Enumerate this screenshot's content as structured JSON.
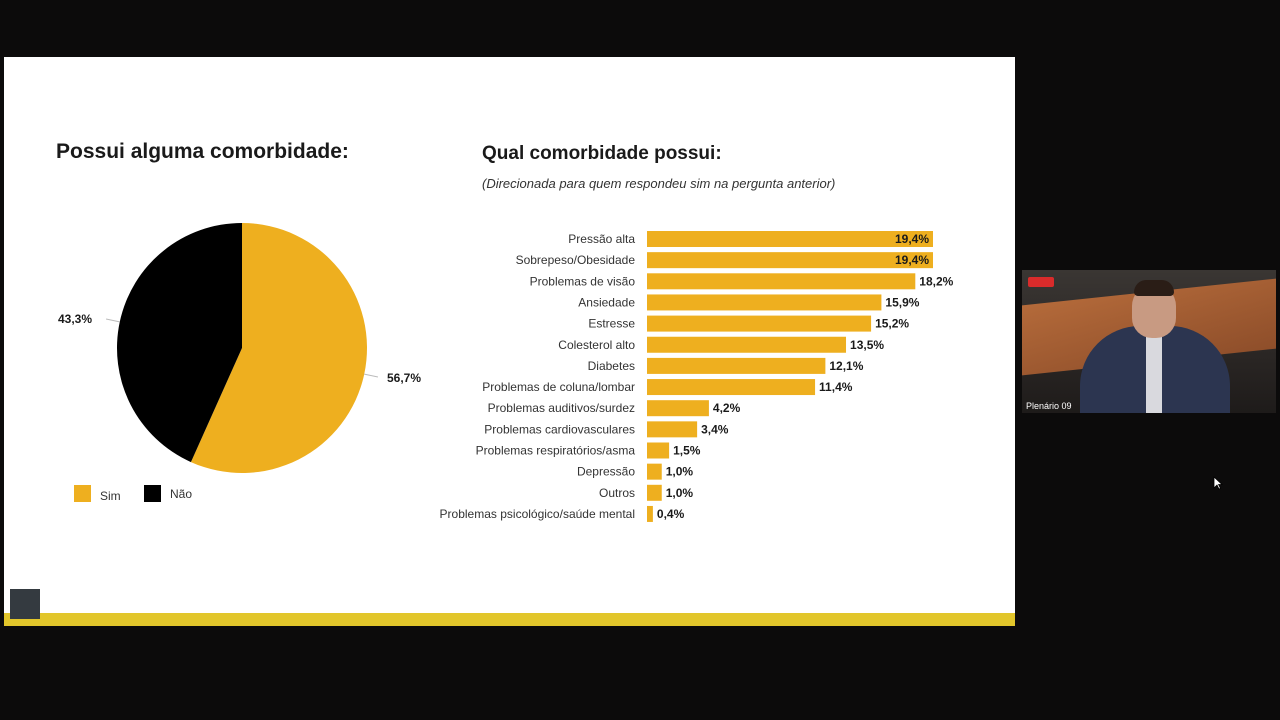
{
  "pie_title": "Possui alguma comorbidade:",
  "bar_title": "Qual comorbidade possui:",
  "bar_subtitle": "(Direcionada para quem respondeu sim na pergunta anterior)",
  "camera_label": "Plenário 09",
  "chart_data": [
    {
      "type": "pie",
      "title": "Possui alguma comorbidade:",
      "slices": [
        {
          "label": "Sim",
          "value": 56.7,
          "value_label": "56,7%",
          "color": "#EEAF1F"
        },
        {
          "label": "Não",
          "value": 43.3,
          "value_label": "43,3%",
          "color": "#000000"
        }
      ],
      "legend": [
        "Sim",
        "Não"
      ],
      "legend_position": "bottom-left"
    },
    {
      "type": "bar",
      "orientation": "horizontal",
      "title": "Qual comorbidade possui:",
      "subtitle": "(Direcionada para quem respondeu sim na pergunta anterior)",
      "color": "#EEAF1F",
      "categories": [
        "Pressão alta",
        "Sobrepeso/Obesidade",
        "Problemas de visão",
        "Ansiedade",
        "Estresse",
        "Colesterol alto",
        "Diabetes",
        "Problemas de coluna/lombar",
        "Problemas auditivos/surdez",
        "Problemas cardiovasculares",
        "Problemas respiratórios/asma",
        "Depressão",
        "Outros",
        "Problemas psicológico/saúde mental"
      ],
      "values": [
        19.4,
        19.4,
        18.2,
        15.9,
        15.2,
        13.5,
        12.1,
        11.4,
        4.2,
        3.4,
        1.5,
        1.0,
        1.0,
        0.4
      ],
      "value_labels": [
        "19,4%",
        "19,4%",
        "18,2%",
        "15,9%",
        "15,2%",
        "13,5%",
        "12,1%",
        "11,4%",
        "4,2%",
        "3,4%",
        "1,5%",
        "1,0%",
        "1,0%",
        "0,4%"
      ],
      "labels_inside": [
        true,
        true,
        false,
        false,
        false,
        false,
        false,
        false,
        false,
        false,
        false,
        false,
        false,
        false
      ],
      "grid": false
    }
  ]
}
